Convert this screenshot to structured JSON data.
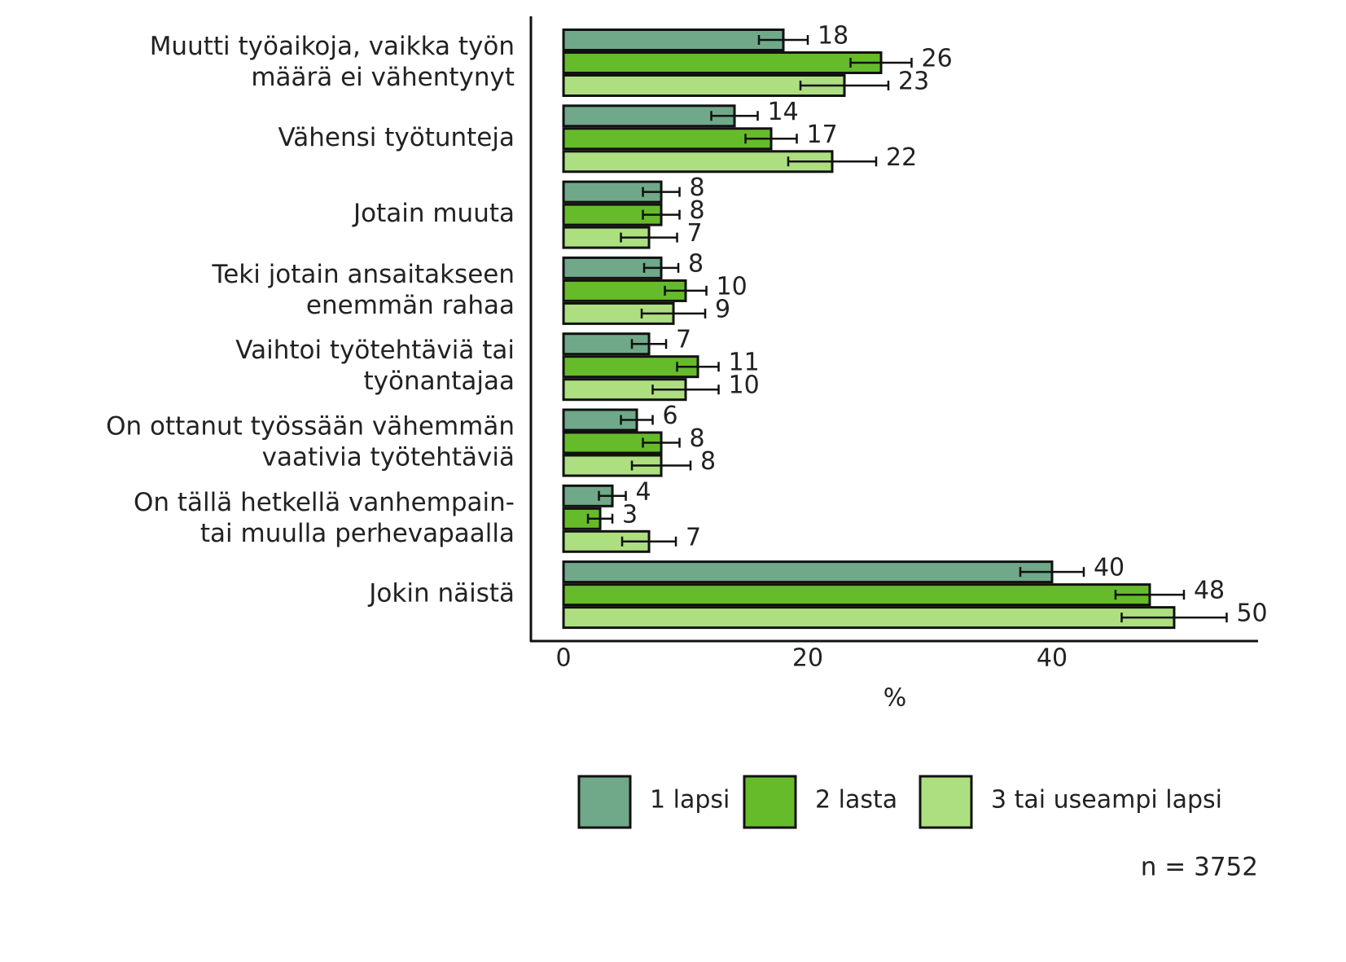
{
  "chart_data": {
    "type": "bar",
    "orientation": "horizontal",
    "categories": [
      "Muutti työaikoja, vaikka työn\nmäärä ei vähentynyt",
      "Vähensi työtunteja",
      "Jotain muuta",
      "Teki jotain ansaitakseen\nenemmän rahaa",
      "Vaihtoi työtehtäviä tai\ntyönantajaa",
      "On ottanut työssään vähemmän\nvaativia työtehtäviä",
      "On tällä hetkellä vanhempain-\ntai muulla perhevapaalla",
      "Jokin näistä"
    ],
    "series": [
      {
        "name": "1 lapsi",
        "color": "#6fa98a",
        "values": [
          18,
          14,
          8,
          8,
          7,
          6,
          4,
          40
        ],
        "errors": [
          2.0,
          1.9,
          1.5,
          1.4,
          1.4,
          1.3,
          1.1,
          2.6
        ]
      },
      {
        "name": "2 lasta",
        "color": "#66bb2a",
        "values": [
          26,
          17,
          8,
          10,
          11,
          8,
          3,
          48
        ],
        "errors": [
          2.5,
          2.1,
          1.5,
          1.7,
          1.7,
          1.5,
          1.0,
          2.8
        ]
      },
      {
        "name": "3 tai useampi lapsi",
        "color": "#addf80",
        "values": [
          23,
          22,
          7,
          9,
          10,
          8,
          7,
          50
        ],
        "errors": [
          3.6,
          3.6,
          2.3,
          2.6,
          2.7,
          2.4,
          2.2,
          4.3
        ]
      }
    ],
    "xlim": [
      -2.67,
      56.87
    ],
    "xticks": [
      0,
      20,
      40
    ],
    "xlabel": "%",
    "legend": "bottom",
    "note": "n = 3752",
    "data_labels": true
  }
}
